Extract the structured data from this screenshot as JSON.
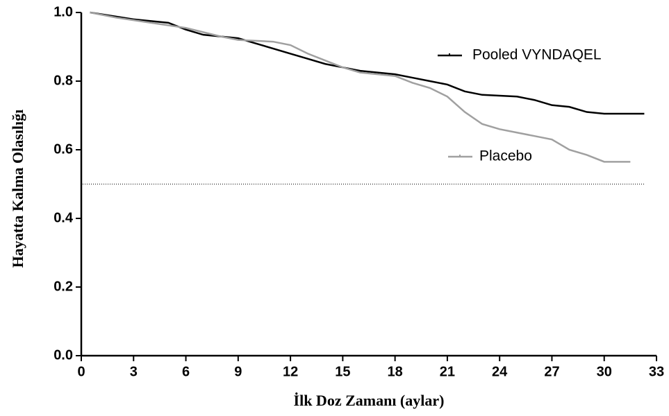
{
  "chart_data": {
    "type": "line",
    "x_label": "İlk Doz Zamanı (aylar)",
    "y_label": "Hayatta Kalma Olasılığı",
    "xlim": [
      0,
      33
    ],
    "xticks": [
      0,
      3,
      6,
      9,
      12,
      15,
      18,
      21,
      24,
      27,
      30,
      33
    ],
    "ylim": [
      0,
      1
    ],
    "yticks": [
      {
        "value": 0,
        "label": "0.0"
      },
      0.2,
      0.4,
      0.6,
      0.8,
      {
        "value": 1,
        "label": "1.0"
      }
    ],
    "reference_line": 0.5,
    "series": [
      {
        "name": "Pooled  VYNDAQEL",
        "color": "#000000",
        "x": [
          0.5,
          3,
          5,
          6,
          7,
          9,
          10,
          12,
          13,
          14,
          15,
          16,
          17,
          18,
          19,
          20,
          21,
          22,
          23,
          25,
          26,
          27,
          28,
          29,
          30,
          32.3
        ],
        "values": [
          1.0,
          0.98,
          0.97,
          0.95,
          0.935,
          0.925,
          0.91,
          0.88,
          0.865,
          0.85,
          0.84,
          0.83,
          0.825,
          0.82,
          0.81,
          0.8,
          0.79,
          0.77,
          0.76,
          0.755,
          0.745,
          0.73,
          0.725,
          0.71,
          0.705,
          0.705
        ]
      },
      {
        "name": "Placebo",
        "color": "#a0a0a0",
        "x": [
          0.5,
          2,
          4,
          6,
          8,
          9,
          11,
          12,
          13,
          14,
          15,
          16,
          18,
          19,
          20,
          21,
          22,
          23,
          24,
          25,
          26,
          27,
          28,
          29,
          30,
          31.5
        ],
        "values": [
          1.0,
          0.985,
          0.97,
          0.955,
          0.93,
          0.92,
          0.915,
          0.905,
          0.88,
          0.86,
          0.84,
          0.825,
          0.815,
          0.795,
          0.78,
          0.755,
          0.71,
          0.675,
          0.66,
          0.65,
          0.64,
          0.63,
          0.6,
          0.585,
          0.565,
          0.565
        ]
      }
    ]
  }
}
